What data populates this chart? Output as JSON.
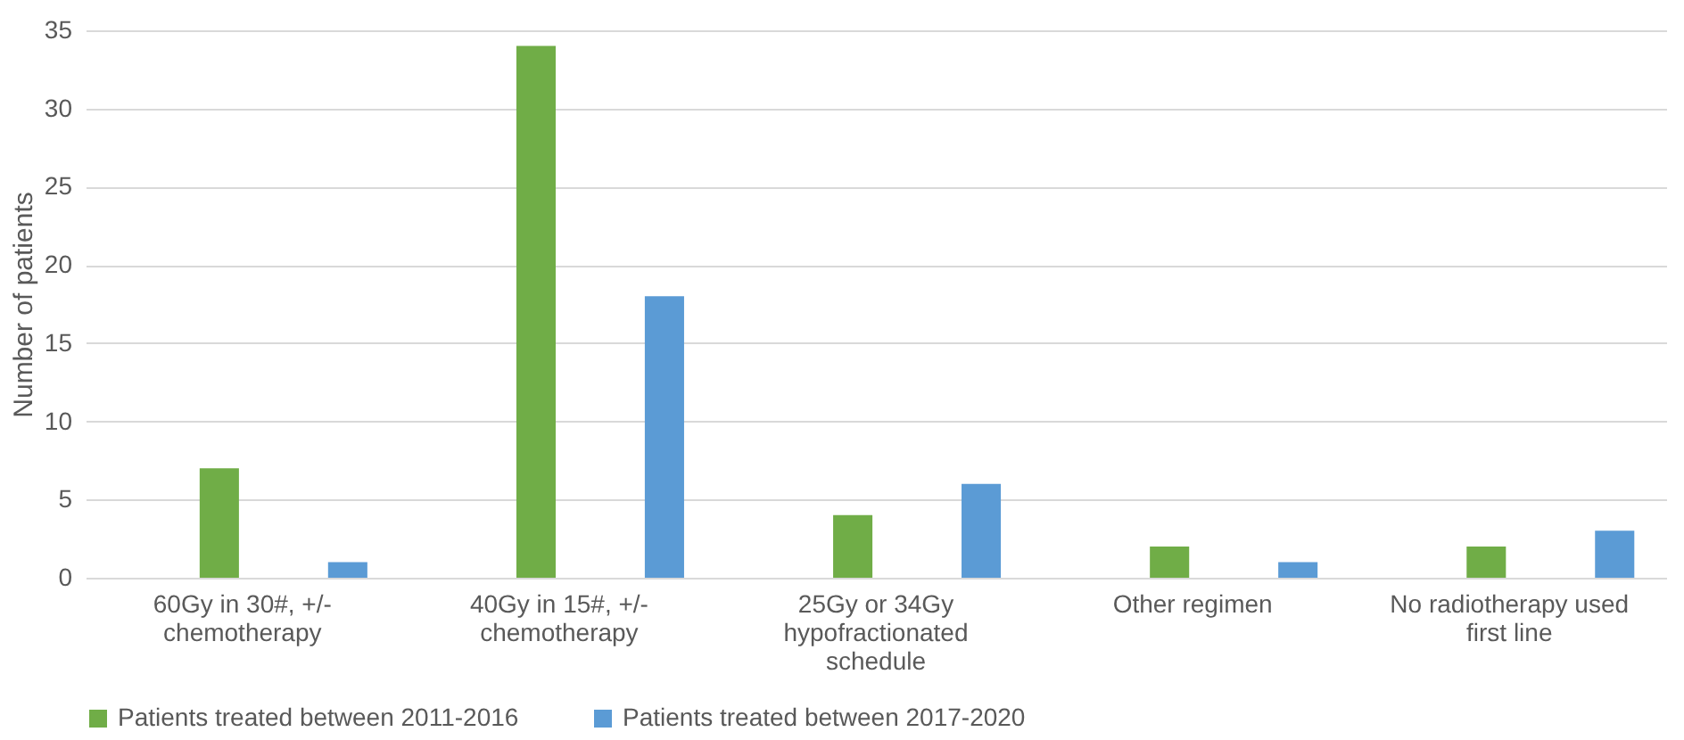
{
  "chart_data": {
    "type": "bar",
    "ylabel": "Number of patients",
    "categories": [
      "60Gy in 30#, +/- chemotherapy",
      "40Gy in 15#, +/- chemotherapy",
      "25Gy or 34Gy hypofractionated schedule",
      "Other regimen",
      "No radiotherapy used first line"
    ],
    "series": [
      {
        "name": "Patients treated between 2011-2016",
        "color": "#70ad47",
        "values": [
          7,
          34,
          4,
          2,
          2
        ]
      },
      {
        "name": "Patients treated between 2017-2020",
        "color": "#5b9bd5",
        "values": [
          1,
          18,
          6,
          1,
          3
        ]
      }
    ],
    "ylim": [
      0,
      35
    ],
    "yticks": [
      0,
      5,
      10,
      15,
      20,
      25,
      30,
      35
    ],
    "grid": "y",
    "legend": "bottom"
  }
}
